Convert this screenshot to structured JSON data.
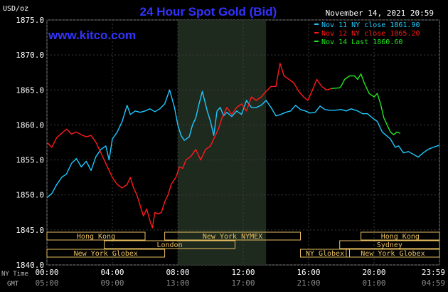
{
  "title": "24 Hour Spot Gold (Bid)",
  "unit_label": "USD/oz",
  "source_link": "www.kitco.com",
  "timestamp": "November 14, 2021 20:59",
  "colors": {
    "title": "#3333ff",
    "link": "#3333ff",
    "nov11": "#1ec8ff",
    "nov12": "#ff1a1a",
    "nov14": "#22e81e",
    "axis_text": "#ffffff",
    "session_box": "#e8c060"
  },
  "legend": [
    {
      "label": "Nov 11 NY close 1861.90",
      "color": "#1ec8ff"
    },
    {
      "label": "Nov 12 NY close 1865.20",
      "color": "#ff1a1a"
    },
    {
      "label": "Nov 14 Last 1860.60",
      "color": "#22e81e"
    }
  ],
  "sessions": [
    {
      "label": "Hong Kong",
      "start": 0,
      "end": 6
    },
    {
      "label": "London",
      "start": 3.5,
      "end": 11.5
    },
    {
      "label": "New York Globex",
      "start": 0,
      "end": 7.2
    },
    {
      "label": "New York NYMEX",
      "start": 7.2,
      "end": 15.5
    },
    {
      "label": "NY Globex",
      "start": 15.5,
      "end": 18.5
    },
    {
      "label": "Hong Kong",
      "start": 19.2,
      "end": 24
    },
    {
      "label": "Sydney",
      "start": 17.9,
      "end": 24
    },
    {
      "label": "New York Globex",
      "start": 18.3,
      "end": 24
    }
  ],
  "time_axis": {
    "ny_label": "NY Time",
    "gmt_label": "GMT",
    "ny_ticks": [
      "00:00",
      "04:00",
      "08:00",
      "12:00",
      "16:00",
      "20:00",
      "23:59"
    ],
    "gmt_ticks": [
      "05:00",
      "09:00",
      "13:00",
      "17:00",
      "21:00",
      "01:00",
      "04:59"
    ]
  },
  "chart_data": {
    "type": "line",
    "title": "24 Hour Spot Gold (Bid)",
    "ylabel": "USD/oz",
    "xlabel": "",
    "x_unit": "hours (NY Time)",
    "xlim": [
      0,
      24
    ],
    "ylim": [
      1840,
      1875
    ],
    "y_ticks": [
      1840,
      1845,
      1850,
      1855,
      1860,
      1865,
      1870,
      1875
    ],
    "shaded_region": [
      8,
      13.4
    ],
    "grid": true,
    "series": [
      {
        "name": "Nov 11 NY close 1861.90",
        "color": "#1ec8ff",
        "points": [
          [
            0,
            1849.6
          ],
          [
            0.3,
            1850.2
          ],
          [
            0.6,
            1851.5
          ],
          [
            0.9,
            1852.5
          ],
          [
            1.2,
            1853.0
          ],
          [
            1.5,
            1854.5
          ],
          [
            1.8,
            1855.2
          ],
          [
            2.1,
            1854.0
          ],
          [
            2.4,
            1854.8
          ],
          [
            2.7,
            1853.5
          ],
          [
            3.0,
            1855.5
          ],
          [
            3.3,
            1856.5
          ],
          [
            3.6,
            1857.0
          ],
          [
            3.8,
            1855.0
          ],
          [
            4.0,
            1858.0
          ],
          [
            4.3,
            1859.0
          ],
          [
            4.6,
            1860.5
          ],
          [
            4.9,
            1862.8
          ],
          [
            5.1,
            1861.5
          ],
          [
            5.4,
            1862.0
          ],
          [
            5.7,
            1861.8
          ],
          [
            6.0,
            1862.0
          ],
          [
            6.3,
            1862.3
          ],
          [
            6.6,
            1861.9
          ],
          [
            6.9,
            1862.3
          ],
          [
            7.2,
            1863.0
          ],
          [
            7.5,
            1865.0
          ],
          [
            7.8,
            1862.5
          ],
          [
            8.0,
            1860.0
          ],
          [
            8.2,
            1858.5
          ],
          [
            8.4,
            1857.8
          ],
          [
            8.7,
            1858.3
          ],
          [
            8.9,
            1860.0
          ],
          [
            9.1,
            1861.0
          ],
          [
            9.3,
            1863.0
          ],
          [
            9.5,
            1864.8
          ],
          [
            9.8,
            1862.0
          ],
          [
            10.0,
            1860.5
          ],
          [
            10.2,
            1858.5
          ],
          [
            10.4,
            1862.0
          ],
          [
            10.6,
            1862.5
          ],
          [
            10.8,
            1861.3
          ],
          [
            11.0,
            1861.8
          ],
          [
            11.3,
            1861.2
          ],
          [
            11.6,
            1862.0
          ],
          [
            11.9,
            1861.5
          ],
          [
            12.2,
            1863.5
          ],
          [
            12.5,
            1862.5
          ],
          [
            12.8,
            1862.5
          ],
          [
            13.1,
            1862.8
          ],
          [
            13.4,
            1863.5
          ],
          [
            13.7,
            1862.5
          ],
          [
            14.0,
            1861.3
          ],
          [
            14.3,
            1861.5
          ],
          [
            14.6,
            1861.8
          ],
          [
            14.9,
            1862.0
          ],
          [
            15.2,
            1862.8
          ],
          [
            15.5,
            1862.2
          ],
          [
            15.8,
            1862.0
          ],
          [
            16.1,
            1861.7
          ],
          [
            16.4,
            1861.8
          ],
          [
            16.7,
            1862.7
          ],
          [
            17.0,
            1862.2
          ],
          [
            17.3,
            1862.1
          ],
          [
            17.6,
            1862.1
          ],
          [
            18.0,
            1862.2
          ],
          [
            18.3,
            1862.0
          ],
          [
            18.6,
            1862.3
          ],
          [
            19.0,
            1862.0
          ],
          [
            19.3,
            1861.6
          ],
          [
            19.6,
            1861.6
          ],
          [
            19.9,
            1861.0
          ],
          [
            20.2,
            1860.5
          ],
          [
            20.5,
            1859.0
          ],
          [
            20.8,
            1858.4
          ],
          [
            21.0,
            1858.0
          ],
          [
            21.3,
            1856.8
          ],
          [
            21.5,
            1857.0
          ],
          [
            21.8,
            1856.0
          ],
          [
            22.1,
            1856.2
          ],
          [
            22.4,
            1855.8
          ],
          [
            22.7,
            1855.4
          ],
          [
            23.0,
            1856.0
          ],
          [
            23.3,
            1856.5
          ],
          [
            23.6,
            1856.8
          ],
          [
            23.99,
            1857.1
          ]
        ]
      },
      {
        "name": "Nov 12 NY close 1865.20",
        "color": "#ff1a1a",
        "points": [
          [
            0,
            1857.5
          ],
          [
            0.3,
            1856.8
          ],
          [
            0.6,
            1858.2
          ],
          [
            0.9,
            1858.8
          ],
          [
            1.2,
            1859.4
          ],
          [
            1.5,
            1858.7
          ],
          [
            1.8,
            1859.0
          ],
          [
            2.1,
            1858.6
          ],
          [
            2.4,
            1858.3
          ],
          [
            2.7,
            1858.5
          ],
          [
            3.0,
            1857.5
          ],
          [
            3.2,
            1856.5
          ],
          [
            3.5,
            1855.0
          ],
          [
            3.8,
            1853.5
          ],
          [
            4.0,
            1852.5
          ],
          [
            4.3,
            1851.5
          ],
          [
            4.6,
            1851.0
          ],
          [
            4.9,
            1851.5
          ],
          [
            5.1,
            1852.5
          ],
          [
            5.3,
            1851.0
          ],
          [
            5.5,
            1850.0
          ],
          [
            5.7,
            1848.5
          ],
          [
            5.9,
            1847.0
          ],
          [
            6.1,
            1848.0
          ],
          [
            6.3,
            1846.3
          ],
          [
            6.45,
            1845.3
          ],
          [
            6.6,
            1847.5
          ],
          [
            6.8,
            1847.3
          ],
          [
            7.0,
            1847.5
          ],
          [
            7.2,
            1849.0
          ],
          [
            7.4,
            1850.0
          ],
          [
            7.6,
            1851.5
          ],
          [
            7.9,
            1852.6
          ],
          [
            8.1,
            1854.0
          ],
          [
            8.3,
            1853.8
          ],
          [
            8.5,
            1855.0
          ],
          [
            8.8,
            1855.5
          ],
          [
            9.1,
            1856.5
          ],
          [
            9.4,
            1855.0
          ],
          [
            9.7,
            1856.5
          ],
          [
            10.0,
            1857.0
          ],
          [
            10.3,
            1858.5
          ],
          [
            10.5,
            1859.5
          ],
          [
            10.7,
            1861.0
          ],
          [
            11.0,
            1862.5
          ],
          [
            11.3,
            1861.5
          ],
          [
            11.6,
            1862.5
          ],
          [
            11.9,
            1863.0
          ],
          [
            12.2,
            1862.0
          ],
          [
            12.5,
            1864.0
          ],
          [
            12.8,
            1863.5
          ],
          [
            13.1,
            1864.0
          ],
          [
            13.4,
            1864.8
          ],
          [
            13.7,
            1865.5
          ],
          [
            14.0,
            1865.5
          ],
          [
            14.25,
            1868.8
          ],
          [
            14.5,
            1867.0
          ],
          [
            14.8,
            1866.5
          ],
          [
            15.1,
            1866.0
          ],
          [
            15.4,
            1864.8
          ],
          [
            15.7,
            1864.0
          ],
          [
            15.95,
            1863.5
          ],
          [
            16.2,
            1864.8
          ],
          [
            16.5,
            1866.5
          ],
          [
            16.8,
            1865.5
          ],
          [
            17.1,
            1865.0
          ],
          [
            17.4,
            1865.2
          ]
        ]
      },
      {
        "name": "Nov 14 Last 1860.60",
        "color": "#22e81e",
        "points": [
          [
            17.4,
            1865.2
          ],
          [
            17.9,
            1865.3
          ],
          [
            18.0,
            1865.6
          ],
          [
            18.2,
            1866.5
          ],
          [
            18.5,
            1867.0
          ],
          [
            18.8,
            1867.0
          ],
          [
            19.0,
            1866.5
          ],
          [
            19.2,
            1867.3
          ],
          [
            19.4,
            1866.0
          ],
          [
            19.7,
            1864.5
          ],
          [
            20.0,
            1864.0
          ],
          [
            20.2,
            1864.5
          ],
          [
            20.4,
            1863.0
          ],
          [
            20.6,
            1861.0
          ],
          [
            20.8,
            1860.0
          ],
          [
            21.0,
            1859.0
          ],
          [
            21.2,
            1858.6
          ],
          [
            21.4,
            1859.0
          ],
          [
            21.6,
            1858.8
          ]
        ]
      }
    ]
  }
}
